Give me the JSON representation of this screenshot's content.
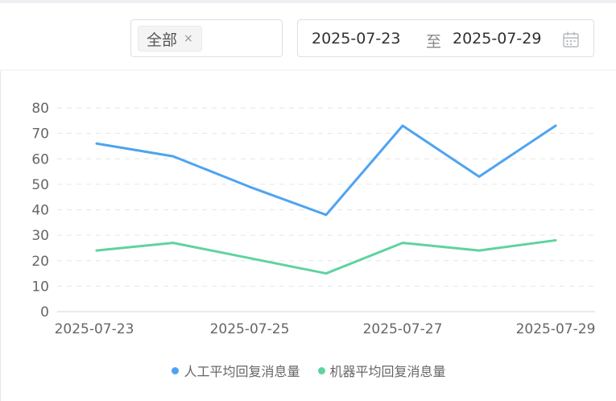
{
  "filters": {
    "tag_label": "全部",
    "tag_close": "×",
    "date_start": "2025-07-23",
    "date_separator": "至",
    "date_end": "2025-07-29"
  },
  "colors": {
    "series1": "#4ea3f1",
    "series2": "#5fd3a0"
  },
  "chart_data": {
    "type": "line",
    "x": [
      "2025-07-23",
      "2025-07-24",
      "2025-07-25",
      "2025-07-26",
      "2025-07-27",
      "2025-07-28",
      "2025-07-29"
    ],
    "x_tick_labels": [
      "2025-07-23",
      "2025-07-25",
      "2025-07-27",
      "2025-07-29"
    ],
    "series": [
      {
        "name": "人工平均回复消息量",
        "values": [
          66,
          61,
          49,
          38,
          73,
          53,
          73
        ]
      },
      {
        "name": "机器平均回复消息量",
        "values": [
          24,
          27,
          21,
          15,
          27,
          24,
          28
        ]
      }
    ],
    "ylim": [
      0,
      80
    ],
    "yticks": [
      0,
      10,
      20,
      30,
      40,
      50,
      60,
      70,
      80
    ],
    "grid": true,
    "legend_position": "bottom"
  }
}
